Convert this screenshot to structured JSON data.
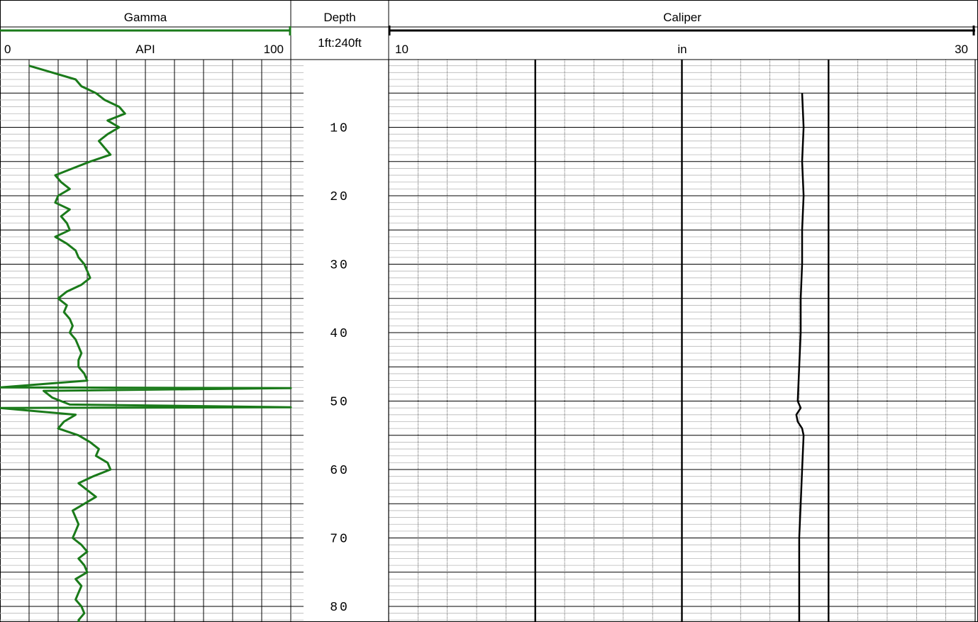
{
  "tracks": {
    "gamma": {
      "title": "Gamma",
      "unit": "API",
      "min_label": "0",
      "max_label": "100",
      "color": "#1a7a1a"
    },
    "depth": {
      "title": "Depth",
      "scale": "1ft:240ft"
    },
    "caliper": {
      "title": "Caliper",
      "unit": "in",
      "min_label": "10",
      "max_label": "30",
      "color": "#000000"
    }
  },
  "depth_labels": [
    "10",
    "20",
    "30",
    "40",
    "50",
    "60",
    "70",
    "80"
  ],
  "chart_data": [
    {
      "type": "line",
      "title": "Gamma",
      "xlabel": "API",
      "ylabel": "Depth",
      "xlim": [
        0,
        100
      ],
      "ylim": [
        1,
        83
      ],
      "series": [
        {
          "name": "Gamma",
          "color": "#1a7a1a",
          "depth": [
            1,
            2,
            3,
            4,
            5,
            6,
            7,
            8,
            9,
            10,
            11,
            12,
            13,
            14,
            15,
            16,
            17,
            18,
            19,
            20,
            21,
            22,
            23,
            24,
            25,
            26,
            27,
            28,
            29,
            30,
            31,
            32,
            33,
            34,
            35,
            36,
            37,
            38,
            39,
            40,
            41,
            42,
            43,
            44,
            45,
            46,
            47,
            48,
            48.1,
            48.5,
            49.5,
            50.5,
            50.9,
            51,
            52,
            53,
            54,
            55,
            56,
            57,
            58,
            59,
            60,
            61,
            62,
            63,
            64,
            65,
            66,
            67,
            68,
            69,
            70,
            71,
            72,
            73,
            74,
            75,
            76,
            77,
            78,
            79,
            80,
            81,
            82,
            83
          ],
          "values": [
            10,
            18,
            26,
            28,
            33,
            36,
            41,
            43,
            37,
            41,
            37,
            34,
            36,
            38,
            31,
            25,
            19,
            21,
            24,
            20,
            19,
            24,
            21,
            23,
            24,
            19,
            23,
            26,
            27,
            29,
            30,
            31,
            28,
            23,
            20,
            23,
            22,
            24,
            25,
            24,
            26,
            27,
            28,
            27,
            27,
            29,
            30,
            0,
            100,
            15,
            18,
            24,
            100,
            0,
            26,
            22,
            20,
            27,
            31,
            34,
            33,
            37,
            38,
            32,
            27,
            30,
            33,
            29,
            25,
            26,
            27,
            26,
            25,
            28,
            30,
            27,
            29,
            30,
            26,
            28,
            27,
            26,
            28,
            29,
            27,
            28
          ]
        }
      ]
    },
    {
      "type": "line",
      "title": "Caliper",
      "xlabel": "in",
      "ylabel": "Depth",
      "xlim": [
        10,
        30
      ],
      "ylim": [
        1,
        83
      ],
      "series": [
        {
          "name": "Caliper",
          "color": "#000000",
          "depth": [
            5,
            10,
            15,
            20,
            25,
            30,
            35,
            40,
            45,
            50,
            51,
            52,
            53,
            54,
            55,
            60,
            65,
            70,
            75,
            80,
            83
          ],
          "values": [
            24.1,
            24.15,
            24.1,
            24.15,
            24.1,
            24.1,
            24.05,
            24.05,
            24.0,
            23.95,
            24.05,
            23.9,
            23.95,
            24.1,
            24.15,
            24.1,
            24.05,
            24.0,
            24.0,
            24.0,
            24.0
          ]
        }
      ]
    }
  ]
}
